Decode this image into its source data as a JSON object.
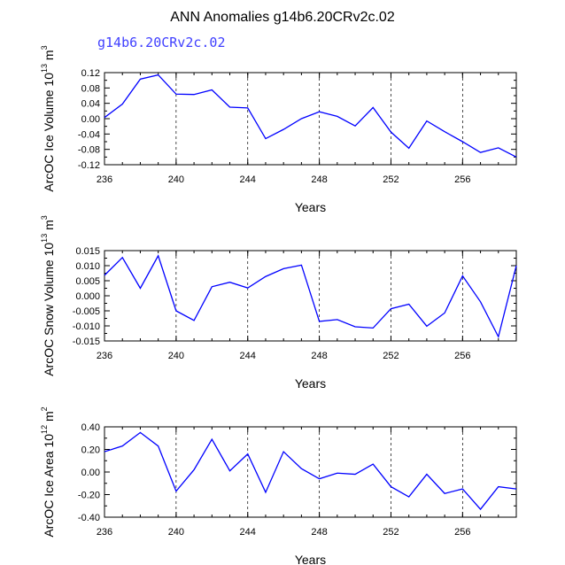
{
  "title": "ANN Anomalies g14b6.20CRv2c.02",
  "subtitle": "g14b6.20CRv2c.02",
  "colors": {
    "line": "#0000ff",
    "subtitle": "#4040ff",
    "axis": "#000000",
    "grid": "#000000"
  },
  "chart_data": [
    {
      "type": "line",
      "ylabel_main": "ArcOC Ice Volume 10",
      "ylabel_exp": "13",
      "ylabel_unit": " m",
      "ylabel_unit_exp": "3",
      "xlabel": "Years",
      "xlim": [
        236,
        259
      ],
      "ylim": [
        -0.12,
        0.12
      ],
      "xticks": [
        236,
        240,
        244,
        248,
        252,
        256
      ],
      "xtick_labels": [
        "236",
        "240",
        "244",
        "248",
        "252",
        "256"
      ],
      "yticks": [
        -0.12,
        -0.08,
        -0.04,
        0.0,
        0.04,
        0.08,
        0.12
      ],
      "ytick_labels": [
        "-0.12",
        "-0.08",
        "-0.04",
        "0.00",
        "0.04",
        "0.08",
        "0.12"
      ],
      "gridlines_x": [
        240,
        244,
        248,
        252,
        256
      ],
      "x": [
        236,
        237,
        238,
        239,
        240,
        241,
        242,
        243,
        244,
        245,
        246,
        247,
        248,
        249,
        250,
        251,
        252,
        253,
        254,
        255,
        256,
        257,
        258,
        259
      ],
      "series": [
        {
          "name": "g14b6.20CRv2c.02",
          "values": [
            0.003,
            0.038,
            0.103,
            0.114,
            0.064,
            0.063,
            0.075,
            0.03,
            0.028,
            -0.052,
            -0.028,
            0.0,
            0.018,
            0.006,
            -0.019,
            0.029,
            -0.035,
            -0.077,
            -0.006,
            -0.034,
            -0.06,
            -0.088,
            -0.076,
            -0.1
          ]
        }
      ]
    },
    {
      "type": "line",
      "ylabel_main": "ArcOC Snow Volume 10",
      "ylabel_exp": "13",
      "ylabel_unit": " m",
      "ylabel_unit_exp": "3",
      "xlabel": "Years",
      "xlim": [
        236,
        259
      ],
      "ylim": [
        -0.015,
        0.015
      ],
      "xticks": [
        236,
        240,
        244,
        248,
        252,
        256
      ],
      "xtick_labels": [
        "236",
        "240",
        "244",
        "248",
        "252",
        "256"
      ],
      "yticks": [
        -0.015,
        -0.01,
        -0.005,
        0.0,
        0.005,
        0.01,
        0.015
      ],
      "ytick_labels": [
        "-0.015",
        "-0.010",
        "-0.005",
        "0.000",
        "0.005",
        "0.010",
        "0.015"
      ],
      "gridlines_x": [
        240,
        244,
        248,
        252,
        256
      ],
      "x": [
        236,
        237,
        238,
        239,
        240,
        241,
        242,
        243,
        244,
        245,
        246,
        247,
        248,
        249,
        250,
        251,
        252,
        253,
        254,
        255,
        256,
        257,
        258,
        259
      ],
      "series": [
        {
          "name": "g14b6.20CRv2c.02",
          "values": [
            0.0068,
            0.0127,
            0.0025,
            0.0133,
            -0.005,
            -0.0082,
            0.003,
            0.0045,
            0.0026,
            0.0064,
            0.009,
            0.0102,
            -0.0085,
            -0.0079,
            -0.0103,
            -0.0107,
            -0.0043,
            -0.0028,
            -0.0101,
            -0.0057,
            0.0066,
            -0.002,
            -0.0136,
            0.01
          ]
        }
      ]
    },
    {
      "type": "line",
      "ylabel_main": "ArcOC Ice Area 10",
      "ylabel_exp": "12",
      "ylabel_unit": " m",
      "ylabel_unit_exp": "2",
      "xlabel": "Years",
      "xlim": [
        236,
        259
      ],
      "ylim": [
        -0.4,
        0.4
      ],
      "xticks": [
        236,
        240,
        244,
        248,
        252,
        256
      ],
      "xtick_labels": [
        "236",
        "240",
        "244",
        "248",
        "252",
        "256"
      ],
      "yticks": [
        -0.4,
        -0.2,
        0.0,
        0.2,
        0.4
      ],
      "ytick_labels": [
        "-0.40",
        "-0.20",
        "0.00",
        "0.20",
        "0.40"
      ],
      "gridlines_x": [
        240,
        244,
        248,
        252,
        256
      ],
      "x": [
        236,
        237,
        238,
        239,
        240,
        241,
        242,
        243,
        244,
        245,
        246,
        247,
        248,
        249,
        250,
        251,
        252,
        253,
        254,
        255,
        256,
        257,
        258,
        259
      ],
      "series": [
        {
          "name": "g14b6.20CRv2c.02",
          "values": [
            0.18,
            0.23,
            0.35,
            0.23,
            -0.17,
            0.02,
            0.29,
            0.01,
            0.16,
            -0.18,
            0.18,
            0.03,
            -0.06,
            -0.01,
            -0.02,
            0.07,
            -0.13,
            -0.22,
            -0.02,
            -0.19,
            -0.15,
            -0.33,
            -0.13,
            -0.15
          ]
        }
      ]
    }
  ]
}
